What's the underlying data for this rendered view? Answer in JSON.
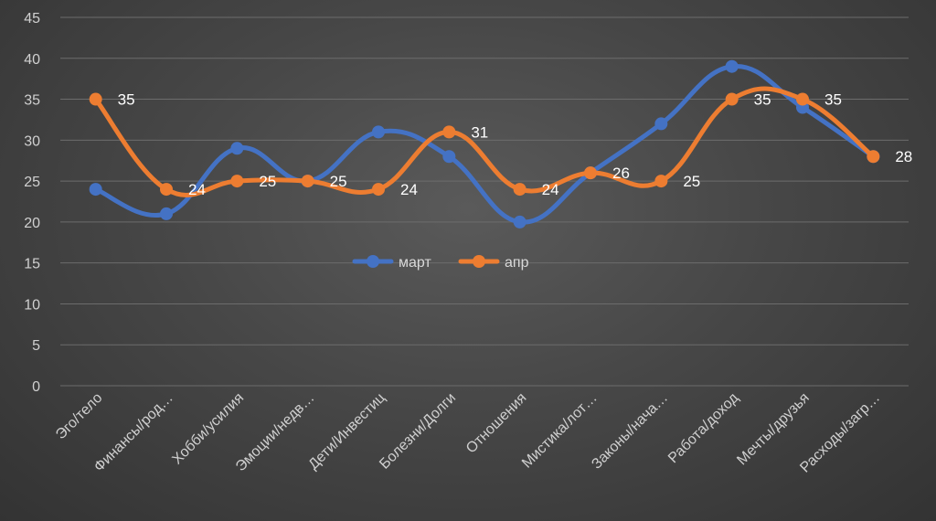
{
  "chart_data": {
    "type": "line",
    "title": "",
    "xlabel": "",
    "ylabel": "",
    "ylim": [
      0,
      45
    ],
    "yticks": [
      "0",
      "5",
      "10",
      "15",
      "20",
      "25",
      "30",
      "35",
      "40",
      "45"
    ],
    "grid": true,
    "legend_position": "center",
    "categories": [
      "Эго/тело",
      "Финансы/род…",
      "Хобби/усилия",
      "Эмоции/недв…",
      "Дети/Инвестиц",
      "Болезни/Долги",
      "Отношения",
      "Мистика/лот…",
      "Законы/нача…",
      "Работа/доход",
      "Мечты/друзья",
      "Расходы/загр…"
    ],
    "series": [
      {
        "name": "март",
        "color": "#4472C4",
        "values": [
          24,
          21,
          29,
          25,
          31,
          28,
          20,
          26,
          32,
          39,
          34,
          28
        ],
        "labels": [
          "",
          "",
          "",
          "",
          "",
          "",
          "",
          "",
          "",
          "",
          "",
          ""
        ]
      },
      {
        "name": "апр",
        "color": "#ED7D31",
        "values": [
          35,
          24,
          25,
          25,
          24,
          31,
          24,
          26,
          25,
          35,
          35,
          28
        ],
        "labels": [
          "35",
          "24",
          "25",
          "25",
          "24",
          "31",
          "24",
          "26",
          "25",
          "35",
          "35",
          "28"
        ]
      }
    ]
  }
}
